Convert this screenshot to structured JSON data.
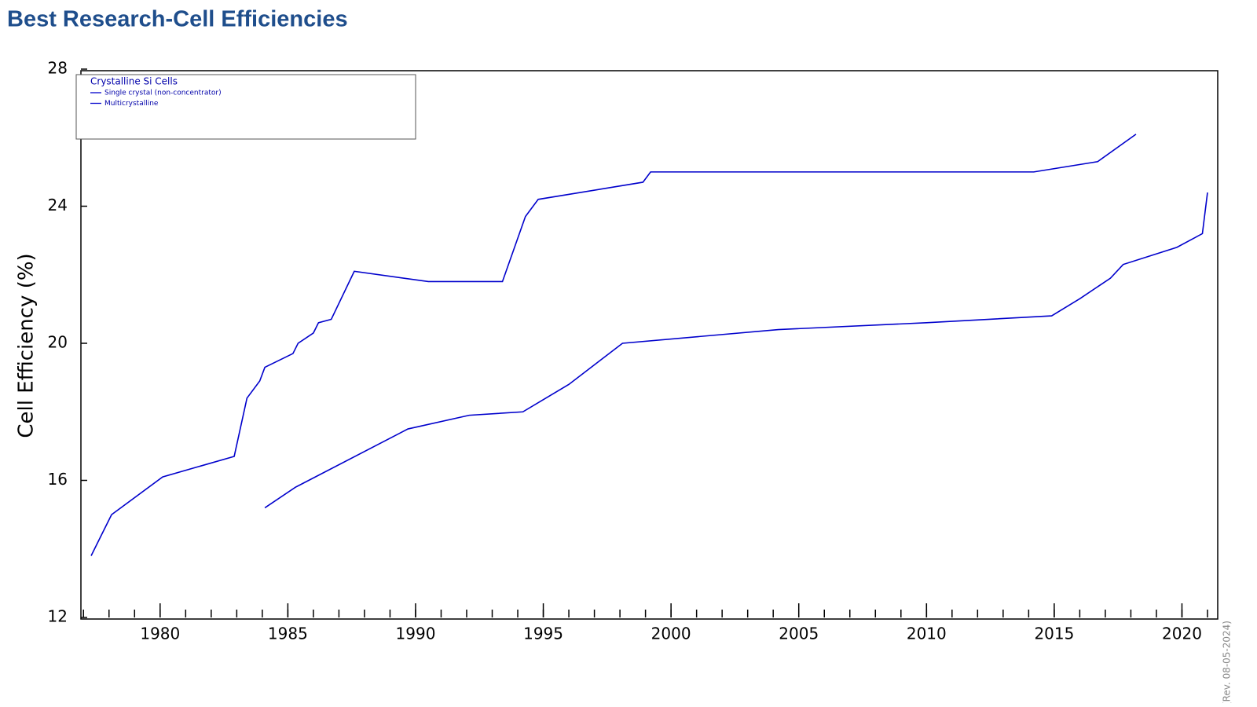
{
  "page_title": "Best Research-Cell Efficiencies",
  "chart_data": {
    "type": "line",
    "ylabel": "Cell Efficiency (%)",
    "legend_title": "Crystalline Si Cells",
    "note": "(Rev. 08-05-2024)",
    "xlim": [
      1976.9,
      2021.4
    ],
    "xticks": [
      1980,
      1985,
      1990,
      1995,
      2000,
      2005,
      2010,
      2015,
      2020
    ],
    "ylim": [
      12,
      28
    ],
    "yticks": [
      12,
      16,
      20,
      24,
      28
    ],
    "grid": false,
    "legend_position": "upper left",
    "series": [
      {
        "name": "Single crystal (non-concentrator)",
        "color": "#0000cc",
        "x": [
          1977.3,
          1978.1,
          1980.1,
          1982.9,
          1983.4,
          1983.9,
          1984.1,
          1985.2,
          1985.4,
          1986.0,
          1986.2,
          1986.7,
          1987.6,
          1990.5,
          1993.4,
          1994.3,
          1994.8,
          1998.9,
          1999.2,
          2014.2,
          2016.7,
          2018.2
        ],
        "values": [
          13.8,
          15.0,
          16.1,
          16.7,
          18.4,
          18.9,
          19.3,
          19.7,
          20.0,
          20.3,
          20.6,
          20.7,
          22.1,
          21.8,
          21.8,
          23.7,
          24.2,
          24.7,
          25.0,
          25.0,
          25.3,
          26.1
        ]
      },
      {
        "name": "Multicrystalline",
        "color": "#0000cc",
        "x": [
          1984.1,
          1985.3,
          1989.7,
          1992.1,
          1994.2,
          1996.0,
          1998.1,
          2004.2,
          2010.0,
          2014.9,
          2016.0,
          2017.2,
          2017.7,
          2019.8,
          2020.8,
          2021.0
        ],
        "values": [
          15.2,
          15.8,
          17.5,
          17.9,
          18.0,
          18.8,
          20.0,
          20.4,
          20.6,
          20.8,
          21.3,
          21.9,
          22.3,
          22.8,
          23.2,
          24.4
        ]
      }
    ]
  }
}
